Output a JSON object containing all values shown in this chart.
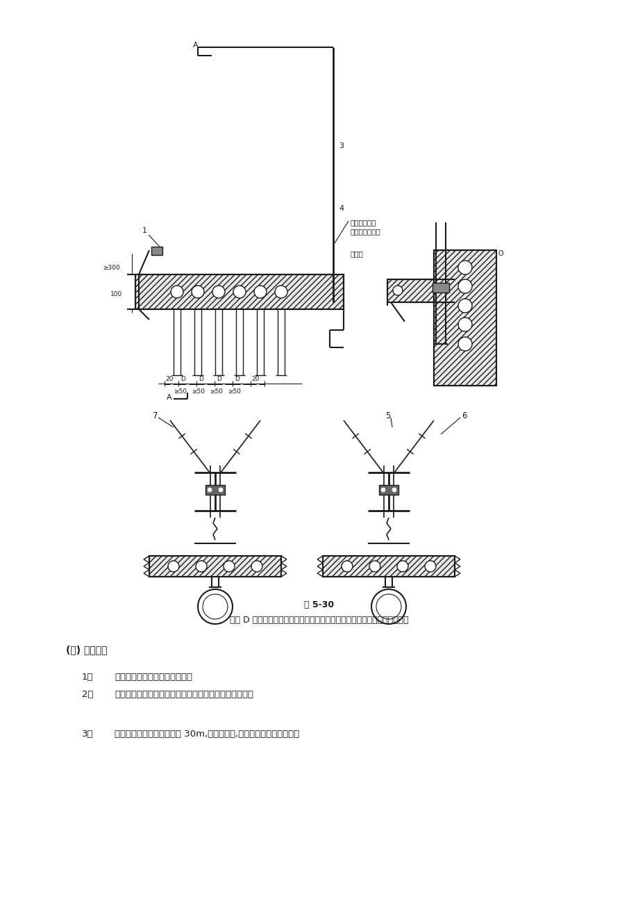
{
  "bg_color": "#ffffff",
  "fig_caption": "图 5-30",
  "fig_caption2": "图中 D 表示保护管外径。当电缆根数较多或规格较大时，可使用角钢支架。",
  "section_title": "(三) 桥架安装",
  "items": [
    {
      "num": "1、",
      "text": "桥架与支架之间固定采用螺栓。"
    },
    {
      "num": "2、",
      "text": "桥架与钢管之间连接采用专用锁母固定，并有跨接地线。"
    },
    {
      "num": "3、",
      "text": "当直线段钢制电缆桥架超过 30m,应有伸缩缝,其连接采用伸缩连接板。"
    }
  ],
  "top_diag": {
    "note1": "管口内封堵防",
    "note2": "火堵料或石棉绳",
    "note3": "混凝土",
    "dim_labels": [
      "20",
      "D",
      "D",
      "D",
      "D",
      "20"
    ],
    "dim_labels2": [
      "≥50",
      "≥50",
      "≥50",
      "≥50"
    ],
    "note_300": "≥300",
    "note_100": "100"
  }
}
